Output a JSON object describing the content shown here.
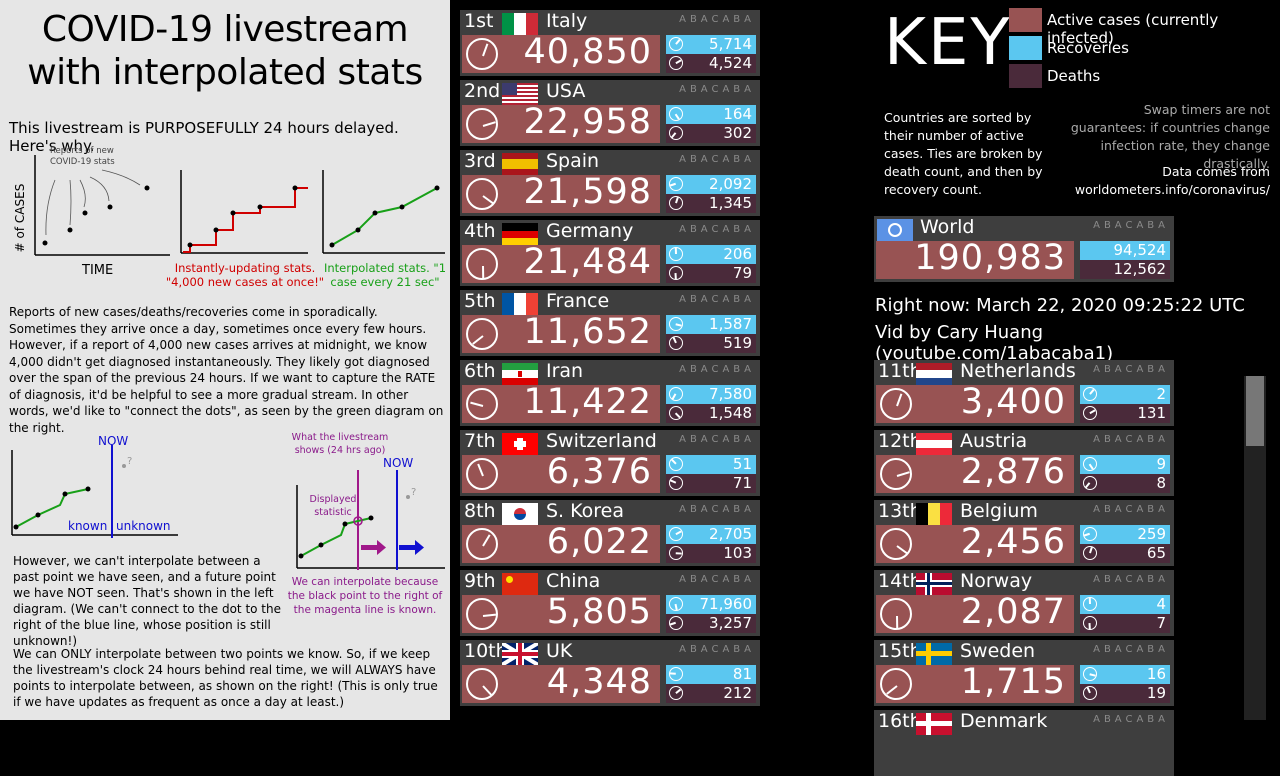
{
  "left": {
    "title": "COVID-19 livestream with interpolated stats",
    "subtitle": "This livestream is PURPOSEFULLY 24 hours delayed. Here's why.",
    "diagram1": {
      "label_reports": "Reports of new COVID-19 stats",
      "ylabel": "# of CASES",
      "xlabel": "TIME"
    },
    "diagram2": {
      "caption": "Instantly-updating stats. \"4,000 new cases at once!\""
    },
    "diagram3": {
      "caption": "Interpolated stats. \"1 case every 21 sec\""
    },
    "para1": "Reports of new cases/deaths/recoveries come in sporadically.  Sometimes they arrive once a day, sometimes once every few hours. However, if a report of 4,000 new cases arrives at midnight, we know 4,000 didn't get diagnosed instantaneously.  They likely got diagnosed over the span of the previous 24 hours. If we want to capture the RATE of diagnosis, it'd be helpful to see a more gradual stream. In other words, we'd like to \"connect the dots\", as seen by the green diagram on the right.",
    "diagram4": {
      "now": "NOW",
      "known": "known",
      "unknown": "unknown"
    },
    "diagram5": {
      "what": "What the livestream shows (24 hrs ago)",
      "displayed": "Displayed statistic",
      "now": "NOW",
      "caption": "We can interpolate because the black point to the right of the magenta line is known."
    },
    "para2": "However, we can't interpolate between a past point we have seen, and a future point we have NOT seen. That's shown in the left diagram. (We can't connect to the dot to the right of the blue line, whose position is still unknown!)",
    "para3": "We can ONLY interpolate between two points we know. So, if we keep the livestream's clock 24 hours behind real time, we will ALWAYS have points to interpolate between, as shown on the right! (This is only true if we have updates as frequent as once a day at least.)"
  },
  "watermark": "ABACABA",
  "countries": [
    {
      "rank": "1st",
      "name": "Italy",
      "active": "40,850",
      "recovered": "5,714",
      "deaths": "4,524",
      "flag": "it"
    },
    {
      "rank": "2nd",
      "name": "USA",
      "active": "22,958",
      "recovered": "164",
      "deaths": "302",
      "flag": "us"
    },
    {
      "rank": "3rd",
      "name": "Spain",
      "active": "21,598",
      "recovered": "2,092",
      "deaths": "1,345",
      "flag": "es"
    },
    {
      "rank": "4th",
      "name": "Germany",
      "active": "21,484",
      "recovered": "206",
      "deaths": "79",
      "flag": "de"
    },
    {
      "rank": "5th",
      "name": "France",
      "active": "11,652",
      "recovered": "1,587",
      "deaths": "519",
      "flag": "fr"
    },
    {
      "rank": "6th",
      "name": "Iran",
      "active": "11,422",
      "recovered": "7,580",
      "deaths": "1,548",
      "flag": "ir"
    },
    {
      "rank": "7th",
      "name": "Switzerland",
      "active": "6,376",
      "recovered": "51",
      "deaths": "71",
      "flag": "ch"
    },
    {
      "rank": "8th",
      "name": "S. Korea",
      "active": "6,022",
      "recovered": "2,705",
      "deaths": "103",
      "flag": "kr"
    },
    {
      "rank": "9th",
      "name": "China",
      "active": "5,805",
      "recovered": "71,960",
      "deaths": "3,257",
      "flag": "cn"
    },
    {
      "rank": "10th",
      "name": "UK",
      "active": "4,348",
      "recovered": "81",
      "deaths": "212",
      "flag": "uk"
    }
  ],
  "countries2": [
    {
      "rank": "11th",
      "name": "Netherlands",
      "active": "3,400",
      "recovered": "2",
      "deaths": "131",
      "flag": "nl"
    },
    {
      "rank": "12th",
      "name": "Austria",
      "active": "2,876",
      "recovered": "9",
      "deaths": "8",
      "flag": "at"
    },
    {
      "rank": "13th",
      "name": "Belgium",
      "active": "2,456",
      "recovered": "259",
      "deaths": "65",
      "flag": "be"
    },
    {
      "rank": "14th",
      "name": "Norway",
      "active": "2,087",
      "recovered": "4",
      "deaths": "7",
      "flag": "no"
    },
    {
      "rank": "15th",
      "name": "Sweden",
      "active": "1,715",
      "recovered": "16",
      "deaths": "19",
      "flag": "se"
    },
    {
      "rank": "16th",
      "name": "Denmark",
      "flag": "dk"
    }
  ],
  "key": {
    "title": "KEY",
    "active": "Active cases (currently infected)",
    "recoveries": "Recoveries",
    "deaths": "Deaths",
    "colors": {
      "active": "#985353",
      "recoveries": "#5bc7f0",
      "deaths": "#4a2a3a"
    },
    "sort_note": "Countries are sorted by their number of active cases. Ties are broken by death count, and then by recovery count.",
    "swap_note": "Swap timers are not guarantees: if countries change infection rate, they change drastically.",
    "source_note": "Data comes from worldometers.info/coronavirus/"
  },
  "world": {
    "name": "World",
    "active": "190,983",
    "recovered": "94,524",
    "deaths": "12,562"
  },
  "right_now": "Right now: March 22, 2020 09:25:22 UTC",
  "vid_by": "Vid by Cary Huang (youtube.com/1abacaba1)"
}
